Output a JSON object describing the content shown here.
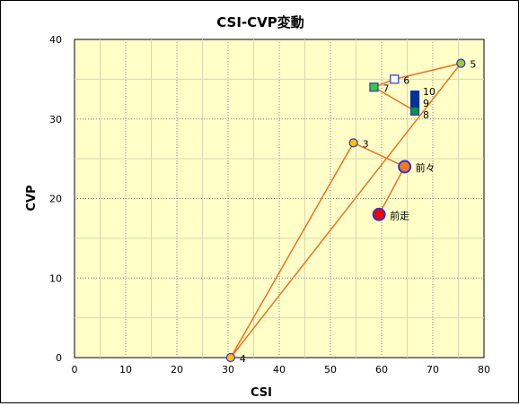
{
  "chart_data": {
    "type": "scatter",
    "title": "CSI-CVP変動",
    "xlabel": "CSI",
    "ylabel": "CVP",
    "xlim": [
      0,
      80
    ],
    "ylim": [
      0,
      40
    ],
    "x_ticks": [
      "0",
      "10",
      "20",
      "30",
      "40",
      "50",
      "60",
      "70",
      "80"
    ],
    "y_ticks": [
      "0",
      "10",
      "20",
      "30",
      "40"
    ],
    "grid": true,
    "plot_background": "#ffffc8",
    "line_color": "#f07020",
    "path_order": [
      "前走",
      "前々",
      "3",
      "4",
      "5",
      "6",
      "7",
      "8"
    ],
    "points": [
      {
        "label": "前走",
        "x": 59.5,
        "y": 18,
        "marker": "circle-large",
        "fill": "#ff0000",
        "stroke": "#3333cc"
      },
      {
        "label": "前々",
        "x": 64.5,
        "y": 24,
        "marker": "circle-large",
        "fill": "#f07828",
        "stroke": "#3333cc"
      },
      {
        "label": "3",
        "x": 54.5,
        "y": 27,
        "marker": "circle",
        "fill": "#ffc000",
        "stroke": "#3333cc"
      },
      {
        "label": "4",
        "x": 30.5,
        "y": 0,
        "marker": "circle",
        "fill": "#ffc000",
        "stroke": "#3333cc"
      },
      {
        "label": "5",
        "x": 75.5,
        "y": 37,
        "marker": "circle",
        "fill": "#99cc33",
        "stroke": "#3333cc"
      },
      {
        "label": "6",
        "x": 62.5,
        "y": 35,
        "marker": "square",
        "fill": "#ffffff",
        "stroke": "#3333cc"
      },
      {
        "label": "7",
        "x": 58.5,
        "y": 34,
        "marker": "square",
        "fill": "#33cc33",
        "stroke": "#3333cc"
      },
      {
        "label": "8",
        "x": 66.5,
        "y": 31,
        "marker": "square",
        "fill": "#009933",
        "stroke": "#3333cc"
      },
      {
        "label": "9",
        "x": 66.5,
        "y": 32,
        "marker": "square",
        "fill": "#003399",
        "stroke": "#003399"
      },
      {
        "label": "10",
        "x": 66.5,
        "y": 33,
        "marker": "square",
        "fill": "#003399",
        "stroke": "#003399"
      }
    ]
  }
}
